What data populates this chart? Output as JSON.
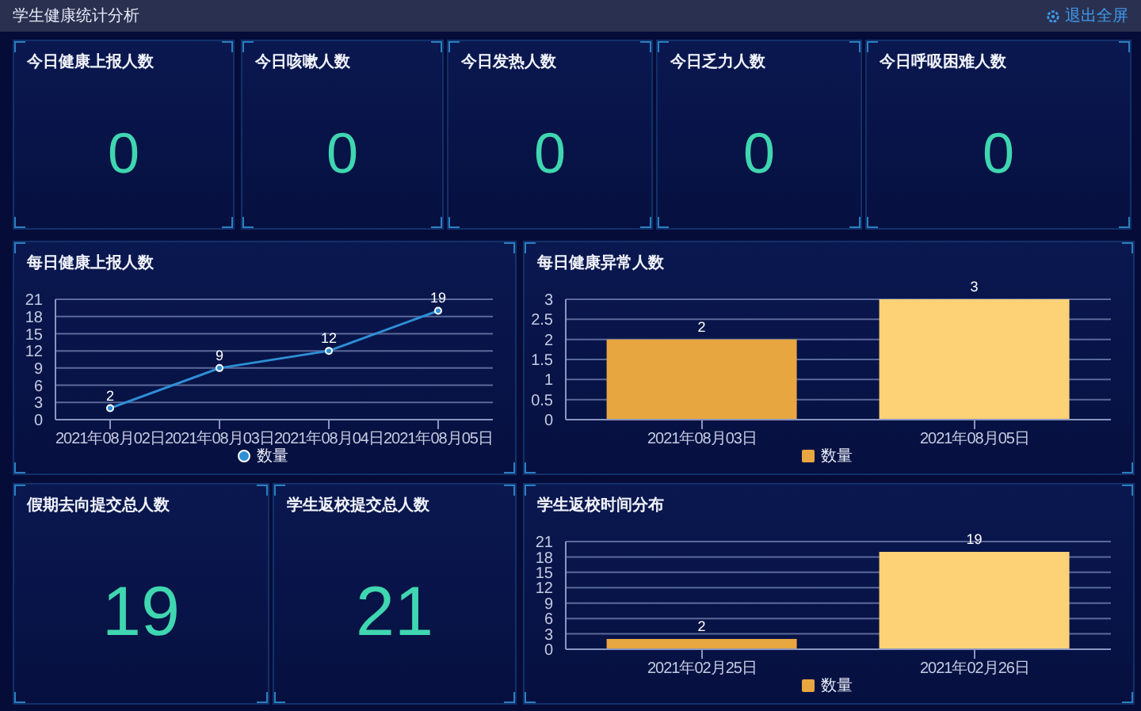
{
  "chart_data": [
    {
      "type": "other",
      "title": "学生健康统计分析",
      "annotations": [
        "退出全屏"
      ]
    },
    {
      "type": "other",
      "title": "今日健康上报人数",
      "annotations": [
        "0"
      ]
    },
    {
      "type": "other",
      "title": "今日咳嗽人数",
      "annotations": [
        "0"
      ]
    },
    {
      "type": "other",
      "title": "今日发热人数",
      "annotations": [
        "0"
      ]
    },
    {
      "type": "other",
      "title": "今日乏力人数",
      "annotations": [
        "0"
      ]
    },
    {
      "type": "other",
      "title": "今日呼吸困难人数",
      "annotations": [
        "0"
      ]
    },
    {
      "type": "line",
      "title": "每日健康上报人数",
      "categories": [
        "2021年08月02日",
        "2021年08月03日",
        "2021年08月04日",
        "2021年08月05日"
      ],
      "series": [
        {
          "name": "数量",
          "color": "#2e8fd6",
          "values": [
            2,
            9,
            12,
            19
          ]
        }
      ],
      "ylim": [
        0,
        21
      ],
      "yticks": [
        0,
        3,
        6,
        9,
        12,
        15,
        18,
        21
      ],
      "grid": "y",
      "legend": "bottom",
      "marker": "circle",
      "data_labels": true
    },
    {
      "type": "bar",
      "title": "每日健康异常人数",
      "categories": [
        "2021年08月03日",
        "2021年08月05日"
      ],
      "series": [
        {
          "name": "数量",
          "color": "#e8a640",
          "colors": [
            "#e8a640",
            "#fdd276"
          ],
          "values": [
            2,
            3
          ]
        }
      ],
      "ylim": [
        0,
        3
      ],
      "yticks": [
        0,
        0.5,
        1,
        1.5,
        2,
        2.5,
        3
      ],
      "grid": "y",
      "legend": "bottom",
      "data_labels": true
    },
    {
      "type": "other",
      "title": "假期去向提交总人数",
      "annotations": [
        "19"
      ]
    },
    {
      "type": "other",
      "title": "学生返校提交总人数",
      "annotations": [
        "21"
      ]
    },
    {
      "type": "bar",
      "title": "学生返校时间分布",
      "categories": [
        "2021年02月25日",
        "2021年02月26日"
      ],
      "series": [
        {
          "name": "数量",
          "color": "#e8a640",
          "colors": [
            "#e8a640",
            "#fdd276"
          ],
          "values": [
            2,
            19
          ]
        }
      ],
      "ylim": [
        0,
        21
      ],
      "yticks": [
        0,
        3,
        6,
        9,
        12,
        15,
        18,
        21
      ],
      "grid": "y",
      "legend": "bottom",
      "data_labels": true
    }
  ]
}
